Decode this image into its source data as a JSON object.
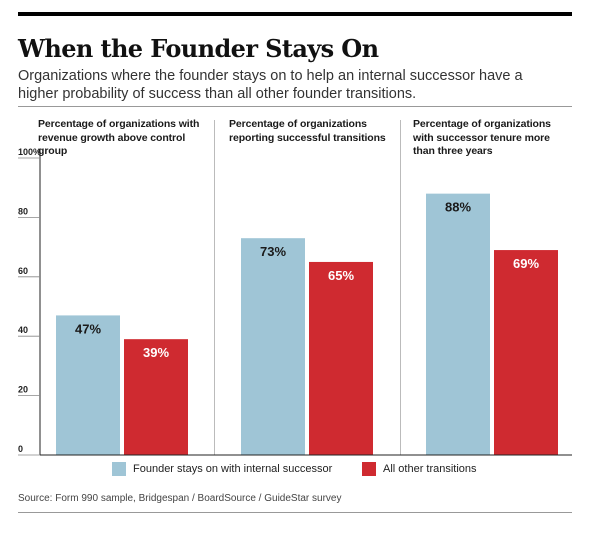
{
  "title": "When the Founder Stays On",
  "subtitle": "Organizations where the founder stays on to help an internal successor have a higher probability of success than all other founder transitions.",
  "source": "Source: Form 990 sample, Bridgespan / BoardSource / GuideStar survey",
  "colors": {
    "founder": "#9fc5d6",
    "other": "#cf2a30"
  },
  "chart_data": {
    "type": "bar",
    "ylim": [
      0,
      100
    ],
    "yticks": [
      "0",
      "20",
      "40",
      "60",
      "80",
      "100%"
    ],
    "ytick_values": [
      0,
      20,
      40,
      60,
      80,
      100
    ],
    "legend_position": "bottom",
    "grid": false,
    "panels": [
      {
        "title": "Percentage of organizations with revenue growth above control group",
        "values": [
          47,
          39
        ],
        "labels": [
          "47%",
          "39%"
        ]
      },
      {
        "title": "Percentage of organizations reporting successful transitions",
        "values": [
          73,
          65
        ],
        "labels": [
          "73%",
          "65%"
        ]
      },
      {
        "title": "Percentage of organizations with successor tenure more than three years",
        "values": [
          88,
          69
        ],
        "labels": [
          "88%",
          "69%"
        ]
      }
    ],
    "series": [
      {
        "name": "Founder stays on with internal successor"
      },
      {
        "name": "All other transitions"
      }
    ]
  }
}
